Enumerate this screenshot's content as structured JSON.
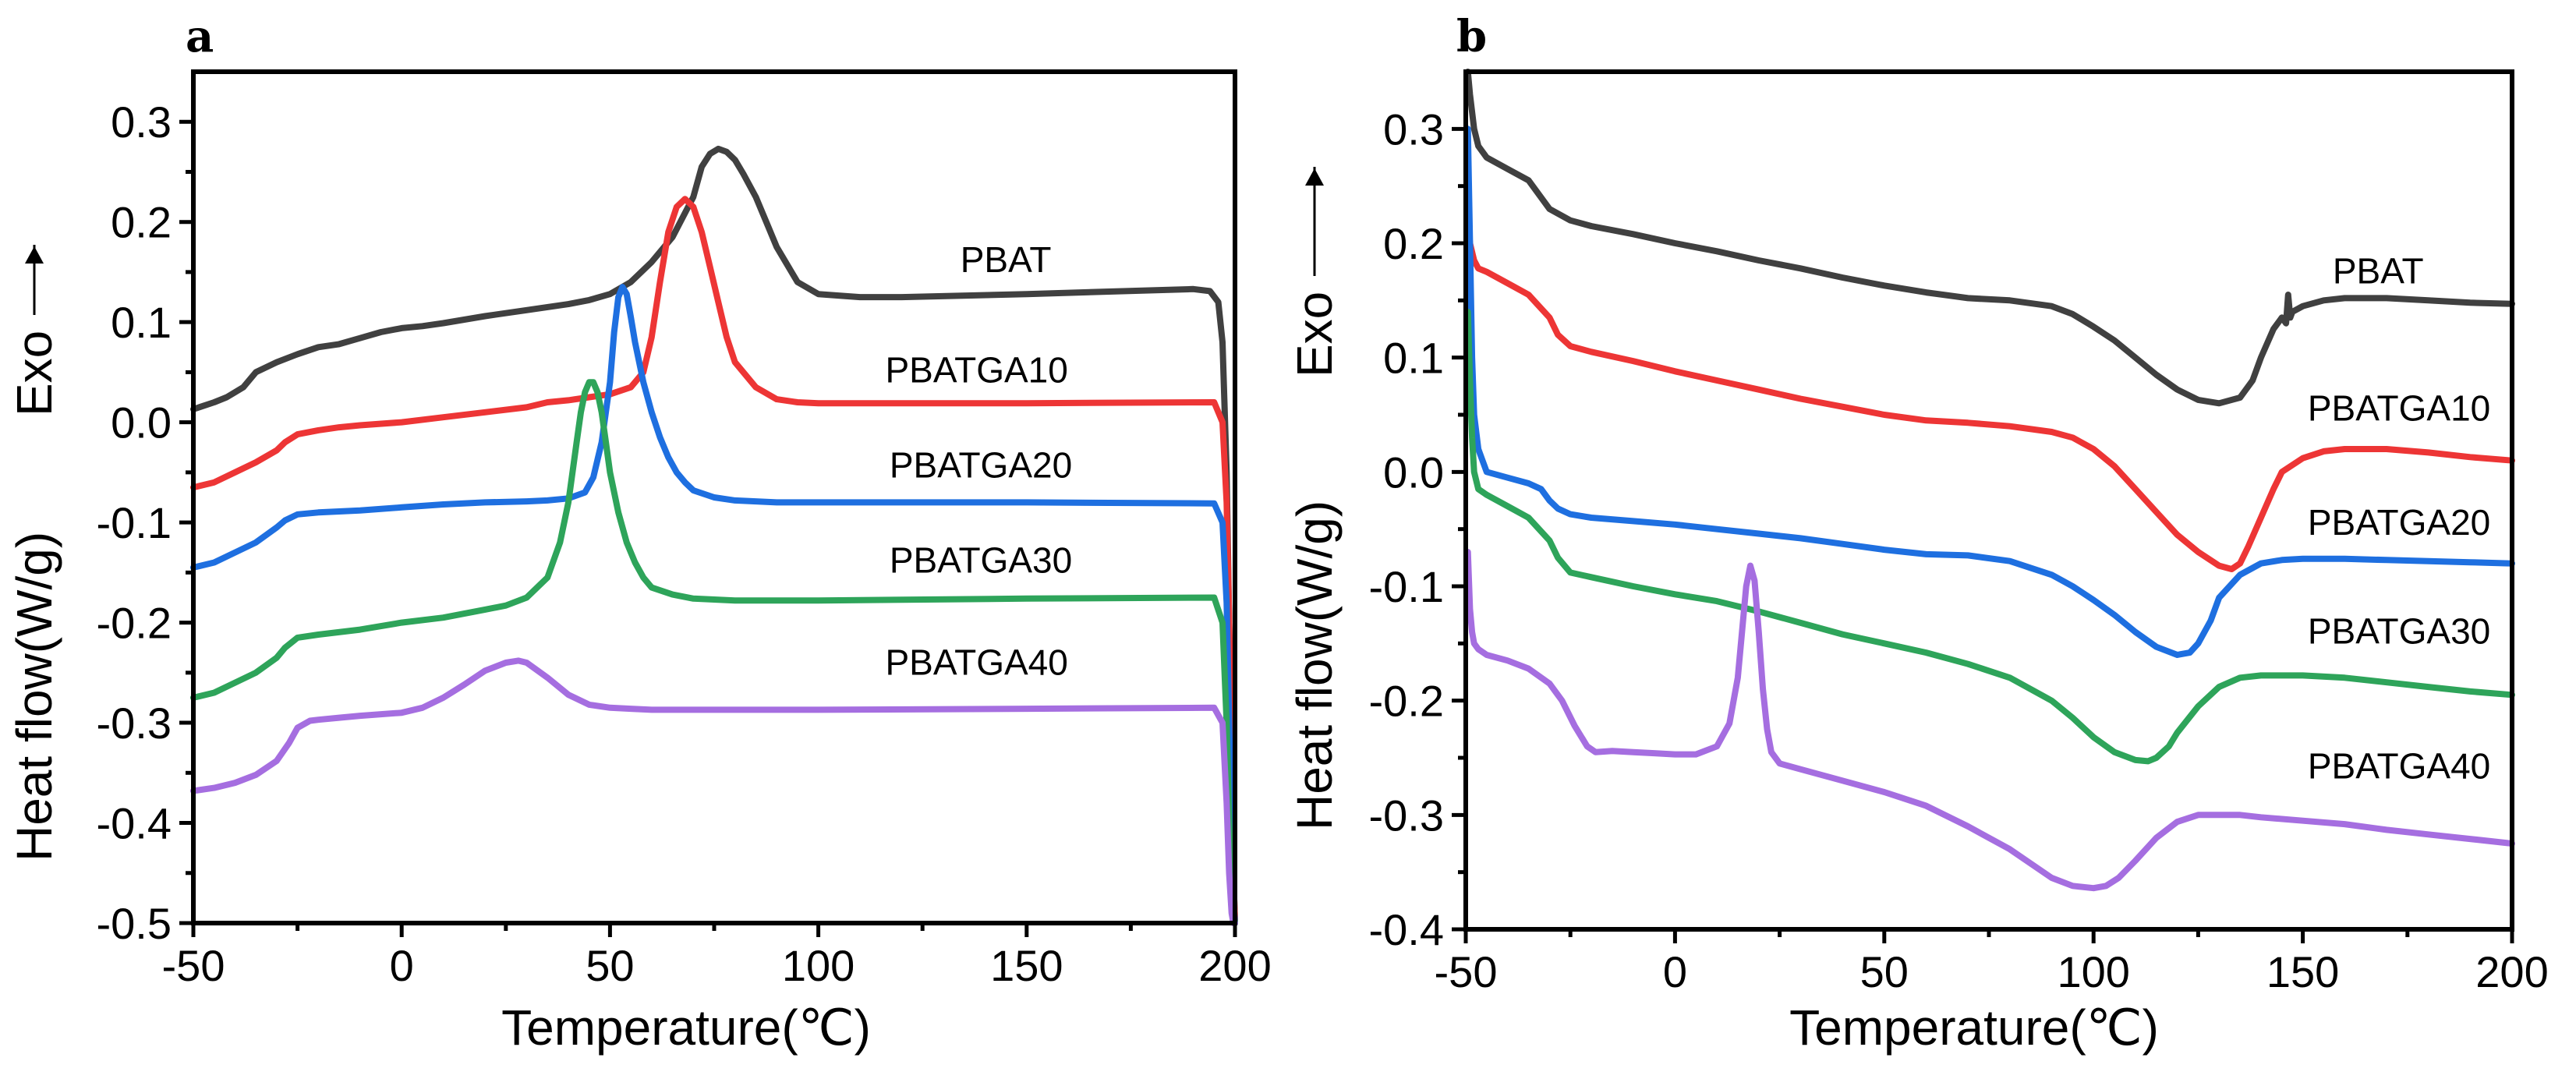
{
  "figure": {
    "arrow_glyph": "↑",
    "exo_line_glyph": "—"
  },
  "chart_data": [
    {
      "type": "line",
      "panel_label": "a",
      "xlabel": "Temperature(℃)",
      "ylabel": "Heat flow(W/g)",
      "exo_label": "Exo",
      "xlim": [
        -50,
        200
      ],
      "ylim": [
        -0.5,
        0.35
      ],
      "xticks": [
        -50,
        0,
        50,
        100,
        150,
        200
      ],
      "xtick_labels": [
        "-50",
        "0",
        "50",
        "100",
        "150",
        "200"
      ],
      "yticks": [
        -0.5,
        -0.4,
        -0.3,
        -0.2,
        -0.1,
        0.0,
        0.1,
        0.2,
        0.3
      ],
      "ytick_labels": [
        "-0.5",
        "-0.4",
        "-0.3",
        "-0.2",
        "-0.1",
        "0.0",
        "0.1",
        "0.2",
        "0.3"
      ],
      "series": [
        {
          "name": "PBAT",
          "color": "#404040",
          "label_at": [
            145,
            0.15
          ],
          "x": [
            -50,
            -45,
            -42,
            -38,
            -35,
            -30,
            -25,
            -20,
            -15,
            -10,
            -5,
            0,
            5,
            10,
            20,
            30,
            40,
            45,
            50,
            55,
            60,
            65,
            70,
            72,
            74,
            76,
            78,
            80,
            82,
            85,
            88,
            90,
            95,
            100,
            110,
            120,
            150,
            190,
            194,
            196,
            197,
            198,
            198.6,
            199.2,
            199.6,
            200
          ],
          "y": [
            0.013,
            0.02,
            0.025,
            0.035,
            0.05,
            0.06,
            0.068,
            0.075,
            0.078,
            0.084,
            0.09,
            0.094,
            0.096,
            0.099,
            0.106,
            0.112,
            0.118,
            0.122,
            0.128,
            0.14,
            0.16,
            0.185,
            0.225,
            0.255,
            0.268,
            0.273,
            0.27,
            0.262,
            0.248,
            0.225,
            0.195,
            0.175,
            0.14,
            0.128,
            0.125,
            0.125,
            0.128,
            0.133,
            0.131,
            0.12,
            0.08,
            -0.05,
            -0.2,
            -0.35,
            -0.45,
            -0.5
          ]
        },
        {
          "name": "PBATGA10",
          "color": "#ed3535",
          "label_at": [
            138,
            0.04
          ],
          "x": [
            -50,
            -45,
            -40,
            -35,
            -30,
            -28,
            -25,
            -20,
            -15,
            -10,
            0,
            10,
            20,
            30,
            35,
            40,
            45,
            50,
            55,
            58,
            60,
            62,
            64,
            66,
            68,
            70,
            72,
            74,
            76,
            78,
            80,
            85,
            90,
            95,
            100,
            150,
            195,
            197,
            198,
            198.6,
            199.2,
            199.6,
            200
          ],
          "y": [
            -0.065,
            -0.06,
            -0.05,
            -0.04,
            -0.028,
            -0.02,
            -0.012,
            -0.008,
            -0.005,
            -0.003,
            0.0,
            0.005,
            0.01,
            0.015,
            0.02,
            0.022,
            0.025,
            0.028,
            0.035,
            0.05,
            0.085,
            0.14,
            0.19,
            0.215,
            0.223,
            0.215,
            0.19,
            0.155,
            0.12,
            0.085,
            0.06,
            0.035,
            0.023,
            0.02,
            0.019,
            0.019,
            0.02,
            0.0,
            -0.08,
            -0.2,
            -0.35,
            -0.45,
            -0.5
          ]
        },
        {
          "name": "PBATGA20",
          "color": "#1e6fe0",
          "label_at": [
            139,
            -0.055
          ],
          "x": [
            -50,
            -45,
            -40,
            -35,
            -30,
            -28,
            -25,
            -20,
            -10,
            0,
            10,
            20,
            30,
            35,
            40,
            44,
            46,
            48,
            50,
            51,
            52,
            53,
            54,
            55,
            56,
            58,
            60,
            62,
            64,
            66,
            68,
            70,
            75,
            80,
            90,
            100,
            150,
            195,
            197,
            198,
            198.6,
            199.2,
            199.6,
            200
          ],
          "y": [
            -0.145,
            -0.14,
            -0.13,
            -0.12,
            -0.105,
            -0.098,
            -0.092,
            -0.09,
            -0.088,
            -0.085,
            -0.082,
            -0.08,
            -0.079,
            -0.078,
            -0.076,
            -0.07,
            -0.055,
            -0.02,
            0.04,
            0.09,
            0.125,
            0.135,
            0.128,
            0.105,
            0.08,
            0.04,
            0.01,
            -0.015,
            -0.035,
            -0.05,
            -0.06,
            -0.068,
            -0.075,
            -0.078,
            -0.08,
            -0.08,
            -0.08,
            -0.081,
            -0.1,
            -0.18,
            -0.3,
            -0.42,
            -0.48,
            -0.5
          ]
        },
        {
          "name": "PBATGA30",
          "color": "#2ea45a",
          "label_at": [
            139,
            -0.15
          ],
          "x": [
            -50,
            -45,
            -40,
            -35,
            -30,
            -28,
            -25,
            -20,
            -10,
            0,
            10,
            20,
            25,
            30,
            35,
            38,
            40,
            42,
            43,
            44,
            45,
            46,
            47,
            48,
            49,
            50,
            52,
            54,
            56,
            58,
            60,
            65,
            70,
            80,
            90,
            100,
            150,
            195,
            197,
            198,
            198.6,
            199.2,
            199.6,
            200
          ],
          "y": [
            -0.275,
            -0.27,
            -0.26,
            -0.25,
            -0.235,
            -0.225,
            -0.215,
            -0.212,
            -0.207,
            -0.2,
            -0.195,
            -0.187,
            -0.183,
            -0.175,
            -0.155,
            -0.12,
            -0.08,
            -0.02,
            0.01,
            0.03,
            0.04,
            0.04,
            0.03,
            0.01,
            -0.02,
            -0.05,
            -0.09,
            -0.12,
            -0.14,
            -0.155,
            -0.165,
            -0.172,
            -0.176,
            -0.178,
            -0.178,
            -0.178,
            -0.176,
            -0.175,
            -0.2,
            -0.3,
            -0.4,
            -0.47,
            -0.49,
            -0.5
          ]
        },
        {
          "name": "PBATGA40",
          "color": "#a56ee0",
          "label_at": [
            138,
            -0.252
          ],
          "x": [
            -50,
            -45,
            -40,
            -35,
            -30,
            -27,
            -25,
            -22,
            -20,
            -15,
            -10,
            0,
            5,
            10,
            15,
            20,
            25,
            28,
            30,
            35,
            40,
            45,
            50,
            55,
            60,
            70,
            100,
            150,
            195,
            197,
            198,
            198.6,
            199.2,
            199.6,
            200
          ],
          "y": [
            -0.368,
            -0.365,
            -0.36,
            -0.352,
            -0.338,
            -0.32,
            -0.305,
            -0.298,
            -0.297,
            -0.295,
            -0.293,
            -0.29,
            -0.285,
            -0.275,
            -0.262,
            -0.248,
            -0.24,
            -0.238,
            -0.24,
            -0.255,
            -0.272,
            -0.282,
            -0.285,
            -0.286,
            -0.287,
            -0.287,
            -0.287,
            -0.286,
            -0.285,
            -0.3,
            -0.38,
            -0.45,
            -0.49,
            -0.5,
            -0.5
          ]
        }
      ]
    },
    {
      "type": "line",
      "panel_label": "b",
      "xlabel": "Temperature(℃)",
      "ylabel": "Heat flow(W/g)",
      "exo_label": "Exo",
      "xlim": [
        -50,
        200
      ],
      "ylim": [
        -0.4,
        0.35
      ],
      "xticks": [
        -50,
        0,
        50,
        100,
        150,
        200
      ],
      "xtick_labels": [
        "-50",
        "0",
        "50",
        "100",
        "150",
        "200"
      ],
      "yticks": [
        -0.4,
        -0.3,
        -0.2,
        -0.1,
        0.0,
        0.1,
        0.2,
        0.3
      ],
      "ytick_labels": [
        "-0.4",
        "-0.3",
        "-0.2",
        "-0.1",
        "0.0",
        "0.1",
        "0.2",
        "0.3"
      ],
      "series": [
        {
          "name": "PBAT",
          "color": "#404040",
          "label_at": [
            168,
            0.165
          ],
          "x": [
            -49.5,
            -49,
            -48,
            -47,
            -45,
            -40,
            -35,
            -33,
            -30,
            -25,
            -20,
            -10,
            0,
            10,
            20,
            30,
            40,
            50,
            60,
            70,
            80,
            90,
            95,
            100,
            105,
            110,
            115,
            120,
            125,
            130,
            135,
            138,
            140,
            143,
            145,
            146,
            146.5,
            147,
            147.5,
            150,
            155,
            160,
            170,
            180,
            190,
            200
          ],
          "y": [
            0.35,
            0.33,
            0.3,
            0.285,
            0.275,
            0.265,
            0.255,
            0.245,
            0.23,
            0.22,
            0.215,
            0.208,
            0.2,
            0.193,
            0.185,
            0.178,
            0.17,
            0.163,
            0.157,
            0.152,
            0.15,
            0.145,
            0.138,
            0.127,
            0.115,
            0.1,
            0.085,
            0.072,
            0.063,
            0.06,
            0.065,
            0.08,
            0.1,
            0.125,
            0.135,
            0.13,
            0.155,
            0.135,
            0.14,
            0.145,
            0.15,
            0.152,
            0.152,
            0.15,
            0.148,
            0.147
          ]
        },
        {
          "name": "PBATGA10",
          "color": "#ed3535",
          "label_at": [
            173,
            0.045
          ],
          "x": [
            -49.5,
            -49,
            -48,
            -47,
            -45,
            -40,
            -35,
            -30,
            -28,
            -25,
            -20,
            -10,
            0,
            10,
            20,
            30,
            40,
            50,
            60,
            70,
            80,
            90,
            95,
            100,
            105,
            110,
            115,
            120,
            125,
            130,
            133,
            135,
            137,
            140,
            143,
            145,
            150,
            155,
            160,
            170,
            180,
            190,
            200
          ],
          "y": [
            0.22,
            0.2,
            0.185,
            0.178,
            0.175,
            0.165,
            0.155,
            0.135,
            0.12,
            0.11,
            0.105,
            0.097,
            0.088,
            0.08,
            0.072,
            0.064,
            0.057,
            0.05,
            0.045,
            0.043,
            0.04,
            0.035,
            0.03,
            0.02,
            0.005,
            -0.015,
            -0.035,
            -0.055,
            -0.07,
            -0.082,
            -0.085,
            -0.08,
            -0.065,
            -0.04,
            -0.015,
            0.0,
            0.012,
            0.018,
            0.02,
            0.02,
            0.017,
            0.013,
            0.01
          ]
        },
        {
          "name": "PBATGA20",
          "color": "#1e6fe0",
          "label_at": [
            173,
            -0.055
          ],
          "x": [
            -49.5,
            -49,
            -48.5,
            -48,
            -47,
            -45,
            -40,
            -35,
            -32,
            -30,
            -28,
            -25,
            -20,
            -10,
            0,
            10,
            20,
            30,
            40,
            50,
            60,
            70,
            80,
            90,
            95,
            100,
            105,
            110,
            115,
            120,
            123,
            125,
            128,
            130,
            135,
            140,
            145,
            150,
            160,
            170,
            180,
            190,
            200
          ],
          "y": [
            0.3,
            0.2,
            0.1,
            0.05,
            0.02,
            0.0,
            -0.005,
            -0.01,
            -0.015,
            -0.025,
            -0.032,
            -0.037,
            -0.04,
            -0.043,
            -0.046,
            -0.05,
            -0.054,
            -0.058,
            -0.063,
            -0.068,
            -0.072,
            -0.073,
            -0.078,
            -0.09,
            -0.1,
            -0.112,
            -0.125,
            -0.14,
            -0.153,
            -0.16,
            -0.158,
            -0.15,
            -0.13,
            -0.11,
            -0.09,
            -0.08,
            -0.077,
            -0.076,
            -0.076,
            -0.077,
            -0.078,
            -0.079,
            -0.08
          ]
        },
        {
          "name": "PBATGA30",
          "color": "#2ea45a",
          "label_at": [
            173,
            -0.15
          ],
          "x": [
            -49.5,
            -49,
            -48.5,
            -48,
            -47,
            -45,
            -40,
            -35,
            -30,
            -28,
            -25,
            -20,
            -10,
            0,
            10,
            20,
            30,
            40,
            50,
            60,
            70,
            80,
            90,
            95,
            100,
            105,
            110,
            113,
            115,
            118,
            120,
            125,
            130,
            135,
            140,
            145,
            150,
            160,
            170,
            180,
            190,
            200
          ],
          "y": [
            0.14,
            0.08,
            0.03,
            0.0,
            -0.015,
            -0.02,
            -0.03,
            -0.04,
            -0.06,
            -0.075,
            -0.088,
            -0.092,
            -0.1,
            -0.107,
            -0.113,
            -0.122,
            -0.132,
            -0.142,
            -0.15,
            -0.158,
            -0.168,
            -0.18,
            -0.2,
            -0.215,
            -0.232,
            -0.245,
            -0.252,
            -0.253,
            -0.25,
            -0.24,
            -0.228,
            -0.205,
            -0.188,
            -0.18,
            -0.178,
            -0.178,
            -0.178,
            -0.18,
            -0.184,
            -0.188,
            -0.192,
            -0.195
          ]
        },
        {
          "name": "PBATGA40",
          "color": "#a56ee0",
          "label_at": [
            173,
            -0.268
          ],
          "x": [
            -49.5,
            -49,
            -48.5,
            -48,
            -47,
            -45,
            -40,
            -35,
            -30,
            -27,
            -24,
            -21,
            -19,
            -15,
            -10,
            -5,
            0,
            5,
            10,
            13,
            15,
            16,
            17,
            18,
            19,
            20,
            21,
            22,
            23,
            25,
            30,
            40,
            50,
            60,
            70,
            80,
            90,
            95,
            100,
            103,
            106,
            110,
            115,
            120,
            125,
            130,
            135,
            140,
            150,
            160,
            170,
            180,
            190,
            200
          ],
          "y": [
            -0.07,
            -0.12,
            -0.14,
            -0.15,
            -0.155,
            -0.16,
            -0.165,
            -0.172,
            -0.185,
            -0.2,
            -0.222,
            -0.24,
            -0.245,
            -0.244,
            -0.245,
            -0.246,
            -0.247,
            -0.247,
            -0.24,
            -0.22,
            -0.18,
            -0.14,
            -0.1,
            -0.082,
            -0.095,
            -0.14,
            -0.19,
            -0.225,
            -0.245,
            -0.255,
            -0.26,
            -0.27,
            -0.28,
            -0.292,
            -0.31,
            -0.33,
            -0.355,
            -0.362,
            -0.364,
            -0.362,
            -0.355,
            -0.34,
            -0.32,
            -0.306,
            -0.3,
            -0.3,
            -0.3,
            -0.302,
            -0.305,
            -0.308,
            -0.313,
            -0.317,
            -0.321,
            -0.325
          ]
        }
      ]
    }
  ]
}
